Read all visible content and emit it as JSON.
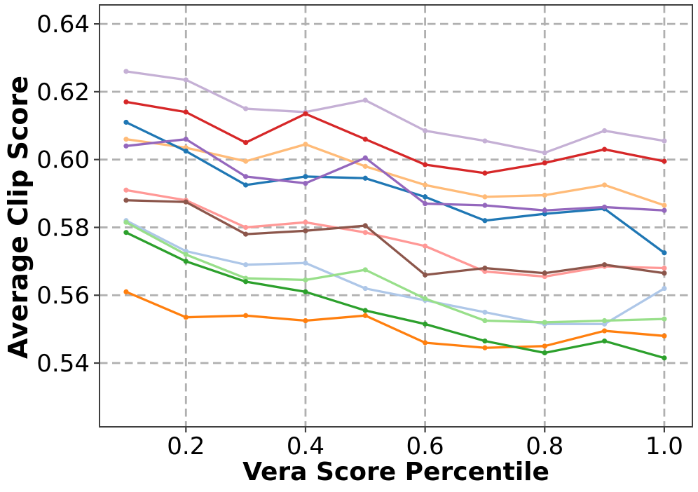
{
  "chart_data": {
    "type": "line",
    "title": "",
    "xlabel": "Vera Score Percentile",
    "ylabel": "Average Clip Score",
    "x": [
      0.1,
      0.2,
      0.3,
      0.4,
      0.5,
      0.6,
      0.7,
      0.8,
      0.9,
      1.0
    ],
    "xlim": [
      0.0555,
      1.047
    ],
    "ylim": [
      0.5212,
      0.6456
    ],
    "xticks": [
      0.2,
      0.4,
      0.6,
      0.8,
      1.0
    ],
    "xtick_labels": [
      "0.2",
      "0.4",
      "0.6",
      "0.8",
      "1.0"
    ],
    "yticks": [
      0.54,
      0.56,
      0.58,
      0.6,
      0.62,
      0.64
    ],
    "ytick_labels": [
      "0.54",
      "0.56",
      "0.58",
      "0.60",
      "0.62",
      "0.64"
    ],
    "grid": true,
    "grid_style": "dashed",
    "legend": "none",
    "marker": "circle",
    "series": [
      {
        "name": "light-blue",
        "color": "#aec7e8",
        "values": [
          0.582,
          0.573,
          0.569,
          0.5695,
          0.562,
          0.5585,
          0.555,
          0.5515,
          0.5515,
          0.562
        ]
      },
      {
        "name": "light-green",
        "color": "#98df8a",
        "values": [
          0.5815,
          0.572,
          0.565,
          0.5645,
          0.5675,
          0.559,
          0.5525,
          0.552,
          0.5525,
          0.553
        ]
      },
      {
        "name": "light-orange",
        "color": "#ffbb78",
        "values": [
          0.606,
          0.6035,
          0.5995,
          0.6045,
          0.598,
          0.5925,
          0.589,
          0.5895,
          0.5925,
          0.5865
        ]
      },
      {
        "name": "light-purple",
        "color": "#c5b0d5",
        "values": [
          0.626,
          0.6235,
          0.615,
          0.614,
          0.6175,
          0.6085,
          0.6055,
          0.602,
          0.6085,
          0.6055
        ]
      },
      {
        "name": "pink",
        "color": "#ff9896",
        "values": [
          0.591,
          0.588,
          0.58,
          0.5815,
          0.5785,
          0.5745,
          0.567,
          0.5655,
          0.5685,
          0.568
        ]
      },
      {
        "name": "orange",
        "color": "#ff7f0e",
        "values": [
          0.561,
          0.5535,
          0.554,
          0.5525,
          0.554,
          0.546,
          0.5445,
          0.545,
          0.5495,
          0.548
        ]
      },
      {
        "name": "green",
        "color": "#2ca02c",
        "values": [
          0.5785,
          0.57,
          0.564,
          0.561,
          0.5555,
          0.5515,
          0.5465,
          0.543,
          0.5465,
          0.5415
        ]
      },
      {
        "name": "blue",
        "color": "#1f77b4",
        "values": [
          0.611,
          0.6025,
          0.5925,
          0.595,
          0.5945,
          0.589,
          0.582,
          0.584,
          0.5855,
          0.5725
        ]
      },
      {
        "name": "brown",
        "color": "#8c564b",
        "values": [
          0.588,
          0.5875,
          0.578,
          0.579,
          0.5805,
          0.566,
          0.568,
          0.5665,
          0.569,
          0.5665
        ]
      },
      {
        "name": "red",
        "color": "#d62728",
        "values": [
          0.617,
          0.614,
          0.605,
          0.6135,
          0.606,
          0.5985,
          0.596,
          0.599,
          0.603,
          0.5995
        ]
      },
      {
        "name": "purple",
        "color": "#9467bd",
        "values": [
          0.604,
          0.606,
          0.595,
          0.593,
          0.6005,
          0.587,
          0.5865,
          0.585,
          0.586,
          0.585
        ]
      }
    ]
  },
  "colors": {
    "background": "#ffffff",
    "grid": "#b0b0b0",
    "spine": "#3f3f3f",
    "tick_text": "#000000"
  }
}
